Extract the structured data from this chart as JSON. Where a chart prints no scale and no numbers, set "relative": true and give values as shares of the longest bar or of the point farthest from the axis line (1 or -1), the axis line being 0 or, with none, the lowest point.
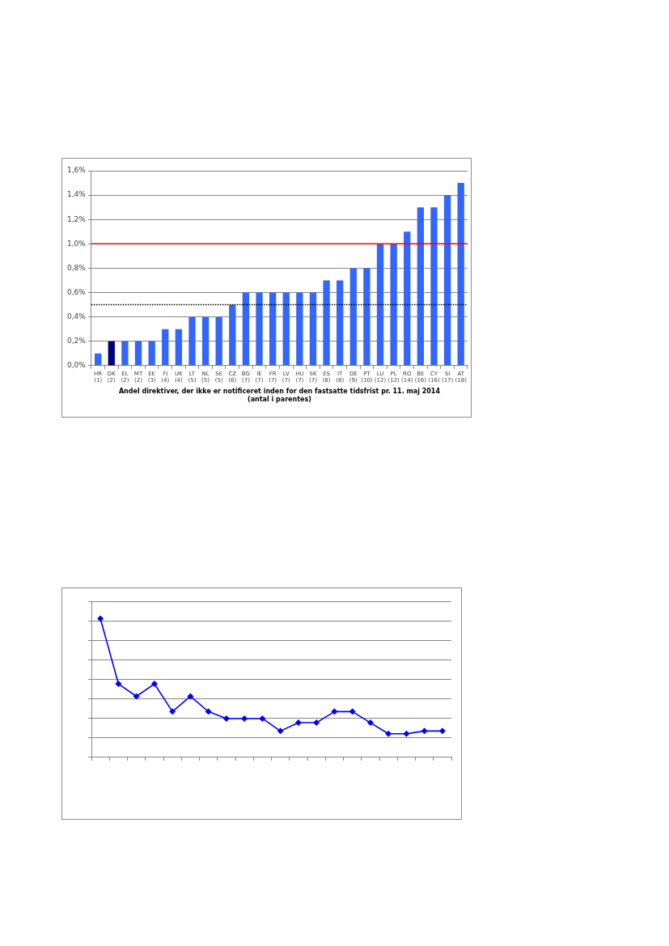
{
  "chart_data": [
    {
      "type": "bar",
      "xlabel": "Andel direktiver, der ikke er notificeret inden for den fastsatte tidsfrist pr. 11. maj 2014\n(antal i parentes)",
      "categories": [
        "HR\n(1)",
        "DK\n(2)",
        "EL\n(2)",
        "MT\n(2)",
        "EE\n(3)",
        "FI\n(4)",
        "UK\n(4)",
        "LT\n(5)",
        "NL\n(5)",
        "SE\n(5)",
        "CZ\n(6)",
        "BG\n(7)",
        "IE\n(7)",
        "FR\n(7)",
        "LV\n(7)",
        "HU\n(7)",
        "SK\n(7)",
        "ES\n(8)",
        "IT\n(8)",
        "DE\n(9)",
        "PT\n(10)",
        "LU\n(12)",
        "PL\n(12)",
        "RO\n(14)",
        "BE\n(16)",
        "CY\n(16)",
        "SI\n(17)",
        "AT\n(18)"
      ],
      "values": [
        0.1,
        0.2,
        0.2,
        0.2,
        0.2,
        0.3,
        0.3,
        0.4,
        0.4,
        0.4,
        0.5,
        0.6,
        0.6,
        0.6,
        0.6,
        0.6,
        0.6,
        0.7,
        0.7,
        0.8,
        0.8,
        1.0,
        1.0,
        1.1,
        1.3,
        1.3,
        1.4,
        1.5
      ],
      "colors": [
        "#3366ff",
        "#000080",
        "#3366ff",
        "#3366ff",
        "#3366ff",
        "#3366ff",
        "#3366ff",
        "#3366ff",
        "#3366ff",
        "#3366ff",
        "#3366ff",
        "#3366ff",
        "#3366ff",
        "#3366ff",
        "#3366ff",
        "#3366ff",
        "#3366ff",
        "#3366ff",
        "#3366ff",
        "#3366ff",
        "#3366ff",
        "#3366ff",
        "#3366ff",
        "#3366ff",
        "#3366ff",
        "#3366ff",
        "#3366ff",
        "#3366ff"
      ],
      "ylim": [
        0,
        1.6
      ],
      "yticks": [
        {
          "value": 0,
          "label": "0,0%"
        },
        {
          "value": 0.2,
          "label": "0,2%"
        },
        {
          "value": 0.4,
          "label": "0,4%"
        },
        {
          "value": 0.6,
          "label": "0,6%"
        },
        {
          "value": 0.8,
          "label": "0,8%"
        },
        {
          "value": 1.0,
          "label": "1,0%"
        },
        {
          "value": 1.2,
          "label": "1,2%"
        },
        {
          "value": 1.4,
          "label": "1,4%"
        },
        {
          "value": 1.6,
          "label": "1,6%"
        }
      ],
      "grid": "y",
      "ref_lines": [
        {
          "axis": "y",
          "value": 1.0,
          "color": "#ff0000",
          "line_style": "solid"
        },
        {
          "axis": "y",
          "value": 0.5,
          "color": "#000000",
          "line_style": "dotted"
        }
      ]
    },
    {
      "type": "line",
      "relative": true,
      "categories": [
        null,
        null,
        null,
        null,
        null,
        null,
        null,
        null,
        null,
        null,
        null,
        null,
        null,
        null,
        null,
        null,
        null,
        null,
        null,
        null
      ],
      "values": [
        1,
        0.53,
        0.44,
        0.53,
        0.33,
        0.44,
        0.33,
        0.28,
        0.28,
        0.28,
        0.19,
        0.25,
        0.25,
        0.33,
        0.33,
        0.25,
        0.17,
        0.17,
        0.19,
        0.19
      ],
      "color": "#0000ff",
      "marker": "diamond",
      "line_style": "solid",
      "grid": "y"
    }
  ]
}
